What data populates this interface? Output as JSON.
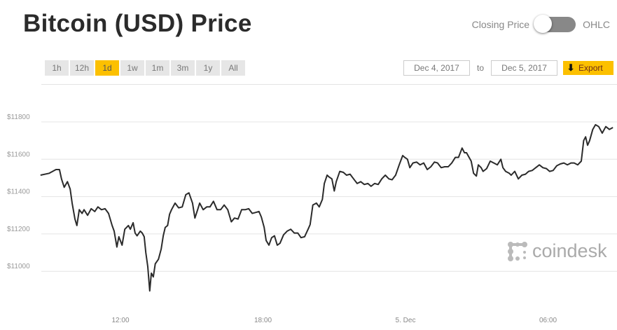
{
  "header": {
    "title": "Bitcoin (USD) Price"
  },
  "toggle": {
    "left_label": "Closing Price",
    "right_label": "OHLC",
    "state": "Closing Price"
  },
  "ranges": [
    {
      "label": "1h"
    },
    {
      "label": "12h"
    },
    {
      "label": "1d",
      "active": true
    },
    {
      "label": "1w"
    },
    {
      "label": "1m"
    },
    {
      "label": "3m"
    },
    {
      "label": "1y"
    },
    {
      "label": "All"
    }
  ],
  "date_range": {
    "from": "Dec 4, 2017",
    "to_label": "to",
    "to": "Dec 5, 2017"
  },
  "export": {
    "label": "Export",
    "icon": "arrow-down-icon"
  },
  "logo": {
    "text": "coindesk"
  },
  "colors": {
    "accent": "#fcc000",
    "line": "#2b2b2b",
    "grid": "#e4e4e4"
  },
  "chart_data": {
    "type": "line",
    "title": "Bitcoin (USD) Price",
    "ylim": [
      10800,
      11900
    ],
    "yticks": [
      11000,
      11200,
      11400,
      11600,
      11800
    ],
    "ytick_labels": [
      "$11000",
      "$11200",
      "$11400",
      "$11600",
      "$11800"
    ],
    "xticks": [
      "2017-12-04T12:00",
      "2017-12-04T18:00",
      "2017-12-05T00:00",
      "2017-12-05T06:00"
    ],
    "xtick_labels": [
      "12:00",
      "18:00",
      "5. Dec",
      "06:00"
    ],
    "grid": true,
    "x": [
      "2017-12-04T08:38",
      "2017-12-04T09:00",
      "2017-12-04T09:17",
      "2017-12-04T09:26",
      "2017-12-04T09:31",
      "2017-12-04T09:38",
      "2017-12-04T09:46",
      "2017-12-04T09:53",
      "2017-12-04T09:58",
      "2017-12-04T10:05",
      "2017-12-04T10:10",
      "2017-12-04T10:16",
      "2017-12-04T10:23",
      "2017-12-04T10:28",
      "2017-12-04T10:37",
      "2017-12-04T10:46",
      "2017-12-04T10:55",
      "2017-12-04T11:03",
      "2017-12-04T11:12",
      "2017-12-04T11:21",
      "2017-12-04T11:30",
      "2017-12-04T11:39",
      "2017-12-04T11:44",
      "2017-12-04T11:51",
      "2017-12-04T11:56",
      "2017-12-04T12:04",
      "2017-12-04T12:11",
      "2017-12-04T12:20",
      "2017-12-04T12:25",
      "2017-12-04T12:32",
      "2017-12-04T12:37",
      "2017-12-04T12:42",
      "2017-12-04T12:50",
      "2017-12-04T12:55",
      "2017-12-04T13:00",
      "2017-12-04T13:04",
      "2017-12-04T13:09",
      "2017-12-04T13:14",
      "2017-12-04T13:18",
      "2017-12-04T13:23",
      "2017-12-04T13:28",
      "2017-12-04T13:36",
      "2017-12-04T13:43",
      "2017-12-04T13:48",
      "2017-12-04T13:53",
      "2017-12-04T13:59",
      "2017-12-04T14:04",
      "2017-12-04T14:09",
      "2017-12-04T14:18",
      "2017-12-04T14:27",
      "2017-12-04T14:36",
      "2017-12-04T14:45",
      "2017-12-04T14:53",
      "2017-12-04T15:02",
      "2017-12-04T15:08",
      "2017-12-04T15:15",
      "2017-12-04T15:20",
      "2017-12-04T15:29",
      "2017-12-04T15:38",
      "2017-12-04T15:46",
      "2017-12-04T15:55",
      "2017-12-04T16:04",
      "2017-12-04T16:13",
      "2017-12-04T16:22",
      "2017-12-04T16:31",
      "2017-12-04T16:40",
      "2017-12-04T16:48",
      "2017-12-04T16:57",
      "2017-12-04T17:06",
      "2017-12-04T17:15",
      "2017-12-04T17:24",
      "2017-12-04T17:33",
      "2017-12-04T17:41",
      "2017-12-04T17:50",
      "2017-12-04T17:56",
      "2017-12-04T18:03",
      "2017-12-04T18:08",
      "2017-12-04T18:15",
      "2017-12-04T18:22",
      "2017-12-04T18:29",
      "2017-12-04T18:36",
      "2017-12-04T18:43",
      "2017-12-04T18:52",
      "2017-12-04T19:01",
      "2017-12-04T19:10",
      "2017-12-04T19:19",
      "2017-12-04T19:28",
      "2017-12-04T19:36",
      "2017-12-04T19:45",
      "2017-12-04T19:54",
      "2017-12-04T19:59",
      "2017-12-04T20:06",
      "2017-12-04T20:15",
      "2017-12-04T20:22",
      "2017-12-04T20:30",
      "2017-12-04T20:35",
      "2017-12-04T20:42",
      "2017-12-04T20:47",
      "2017-12-04T20:54",
      "2017-12-04T21:00",
      "2017-12-04T21:05",
      "2017-12-04T21:14",
      "2017-12-04T21:23",
      "2017-12-04T21:31",
      "2017-12-04T21:40",
      "2017-12-04T21:49",
      "2017-12-04T21:58",
      "2017-12-04T22:07",
      "2017-12-04T22:16",
      "2017-12-04T22:25",
      "2017-12-04T22:33",
      "2017-12-04T22:42",
      "2017-12-04T22:51",
      "2017-12-04T23:00",
      "2017-12-04T23:09",
      "2017-12-04T23:18",
      "2017-12-04T23:26",
      "2017-12-04T23:35",
      "2017-12-04T23:44",
      "2017-12-04T23:53",
      "2017-12-04T23:58",
      "2017-12-05T00:05",
      "2017-12-05T00:11",
      "2017-12-05T00:19",
      "2017-12-05T00:28",
      "2017-12-05T00:37",
      "2017-12-05T00:46",
      "2017-12-05T00:55",
      "2017-12-05T01:04",
      "2017-12-05T01:13",
      "2017-12-05T01:21",
      "2017-12-05T01:30",
      "2017-12-05T01:39",
      "2017-12-05T01:48",
      "2017-12-05T01:57",
      "2017-12-05T02:06",
      "2017-12-05T02:14",
      "2017-12-05T02:23",
      "2017-12-05T02:29",
      "2017-12-05T02:34",
      "2017-12-05T02:46",
      "2017-12-05T02:52",
      "2017-12-05T02:59",
      "2017-12-05T03:04",
      "2017-12-05T03:11",
      "2017-12-05T03:16",
      "2017-12-05T03:25",
      "2017-12-05T03:34",
      "2017-12-05T03:43",
      "2017-12-05T03:52",
      "2017-12-05T04:01",
      "2017-12-05T04:06",
      "2017-12-05T04:13",
      "2017-12-05T04:22",
      "2017-12-05T04:27",
      "2017-12-05T04:36",
      "2017-12-05T04:45",
      "2017-12-05T04:54",
      "2017-12-05T05:03",
      "2017-12-05T05:11",
      "2017-12-05T05:20",
      "2017-12-05T05:29",
      "2017-12-05T05:38",
      "2017-12-05T05:47",
      "2017-12-05T05:56",
      "2017-12-05T06:04",
      "2017-12-05T06:13",
      "2017-12-05T06:22",
      "2017-12-05T06:31",
      "2017-12-05T06:40",
      "2017-12-05T06:49",
      "2017-12-05T06:58",
      "2017-12-05T07:06",
      "2017-12-05T07:15",
      "2017-12-05T07:24",
      "2017-12-05T07:30",
      "2017-12-05T07:35",
      "2017-12-05T07:40",
      "2017-12-05T07:45",
      "2017-12-05T07:53",
      "2017-12-05T08:00",
      "2017-12-05T08:08",
      "2017-12-05T08:17",
      "2017-12-05T08:26",
      "2017-12-05T08:35",
      "2017-12-05T08:44"
    ],
    "y": [
      11515,
      11525,
      11545,
      11545,
      11495,
      11450,
      11480,
      11440,
      11365,
      11280,
      11245,
      11330,
      11310,
      11330,
      11300,
      11335,
      11320,
      11345,
      11330,
      11335,
      11310,
      11245,
      11215,
      11130,
      11185,
      11140,
      11225,
      11245,
      11225,
      11260,
      11205,
      11190,
      11215,
      11205,
      11185,
      11100,
      11025,
      10895,
      10990,
      10970,
      11040,
      11065,
      11120,
      11190,
      11235,
      11245,
      11305,
      11330,
      11365,
      11340,
      11345,
      11410,
      11420,
      11365,
      11285,
      11330,
      11365,
      11330,
      11345,
      11345,
      11375,
      11330,
      11330,
      11355,
      11330,
      11265,
      11285,
      11280,
      11330,
      11330,
      11335,
      11310,
      11315,
      11320,
      11290,
      11235,
      11165,
      11140,
      11180,
      11190,
      11140,
      11150,
      11195,
      11215,
      11225,
      11205,
      11205,
      11180,
      11185,
      11225,
      11250,
      11355,
      11365,
      11345,
      11385,
      11470,
      11515,
      11505,
      11495,
      11430,
      11480,
      11535,
      11530,
      11515,
      11520,
      11495,
      11470,
      11480,
      11465,
      11470,
      11455,
      11470,
      11465,
      11495,
      11515,
      11495,
      11490,
      11515,
      11570,
      11620,
      11610,
      11600,
      11555,
      11580,
      11585,
      11570,
      11580,
      11545,
      11560,
      11585,
      11580,
      11555,
      11560,
      11560,
      11580,
      11610,
      11610,
      11660,
      11635,
      11635,
      11590,
      11525,
      11510,
      11570,
      11555,
      11535,
      11550,
      11590,
      11580,
      11570,
      11600,
      11555,
      11535,
      11525,
      11515,
      11535,
      11495,
      11515,
      11520,
      11535,
      11540,
      11555,
      11570,
      11555,
      11550,
      11535,
      11540,
      11565,
      11575,
      11580,
      11570,
      11580,
      11580,
      11570,
      11590,
      11700,
      11720,
      11675,
      11700,
      11760,
      11785,
      11775,
      11740,
      11775,
      11760,
      11770
    ]
  }
}
